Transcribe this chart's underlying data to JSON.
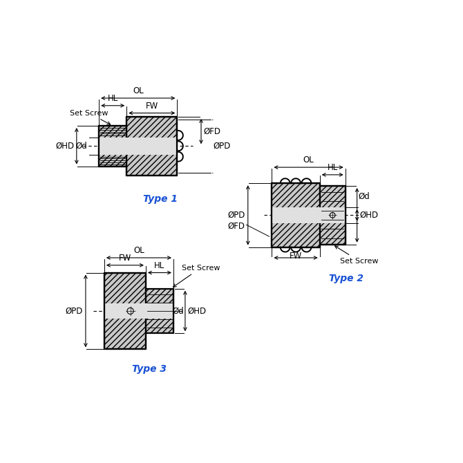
{
  "bg_color": "#ffffff",
  "line_color": "#000000",
  "fill_color": "#c8c8c8",
  "fill_light": "#e0e0e0",
  "type_color": "#1a52d4",
  "title_fontsize": 10,
  "dim_fontsize": 8.5,
  "lw_main": 1.6,
  "lw_dim": 0.8,
  "type1_label": "Type 1",
  "type2_label": "Type 2",
  "type3_label": "Type 3"
}
